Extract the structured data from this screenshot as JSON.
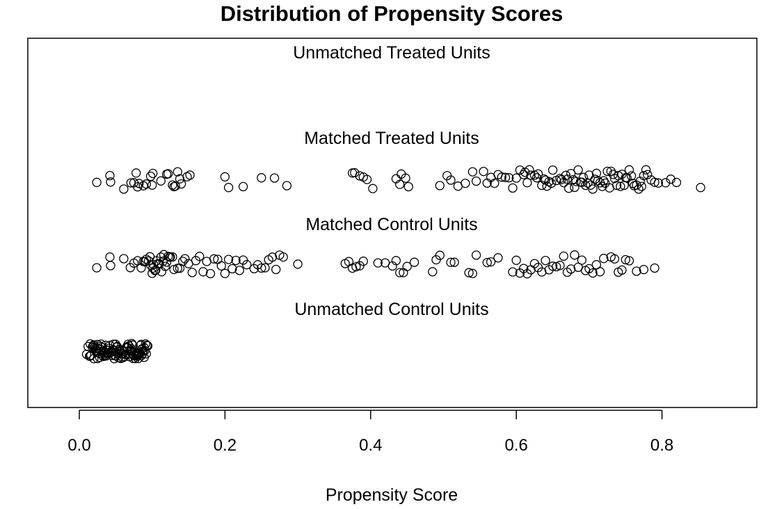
{
  "chart_data": {
    "type": "scatter",
    "title": "Distribution of Propensity Scores",
    "xlabel": "Propensity Score",
    "ylabel": "",
    "xlim": [
      -0.07,
      0.93
    ],
    "x_ticks": [
      {
        "value": 0.0,
        "label": "0.0"
      },
      {
        "value": 0.2,
        "label": "0.2"
      },
      {
        "value": 0.4,
        "label": "0.4"
      },
      {
        "value": 0.6,
        "label": "0.6"
      },
      {
        "value": 0.8,
        "label": "0.8"
      }
    ],
    "grid": false,
    "legend": "none",
    "groups": [
      {
        "name": "Unmatched Treated Units",
        "values": []
      },
      {
        "name": "Matched Treated Units",
        "values": [
          0.024,
          0.042,
          0.043,
          0.061,
          0.071,
          0.075,
          0.078,
          0.08,
          0.082,
          0.088,
          0.092,
          0.098,
          0.1,
          0.101,
          0.112,
          0.12,
          0.122,
          0.128,
          0.13,
          0.132,
          0.135,
          0.138,
          0.14,
          0.148,
          0.152,
          0.2,
          0.205,
          0.225,
          0.25,
          0.268,
          0.285,
          0.375,
          0.378,
          0.385,
          0.39,
          0.395,
          0.403,
          0.435,
          0.44,
          0.442,
          0.448,
          0.452,
          0.495,
          0.505,
          0.51,
          0.52,
          0.53,
          0.54,
          0.545,
          0.555,
          0.56,
          0.565,
          0.57,
          0.575,
          0.58,
          0.585,
          0.59,
          0.595,
          0.6,
          0.605,
          0.61,
          0.612,
          0.615,
          0.618,
          0.62,
          0.625,
          0.628,
          0.63,
          0.635,
          0.638,
          0.64,
          0.642,
          0.645,
          0.648,
          0.65,
          0.655,
          0.66,
          0.662,
          0.665,
          0.668,
          0.67,
          0.672,
          0.675,
          0.678,
          0.68,
          0.682,
          0.685,
          0.688,
          0.69,
          0.692,
          0.695,
          0.698,
          0.7,
          0.702,
          0.705,
          0.708,
          0.71,
          0.712,
          0.715,
          0.718,
          0.72,
          0.722,
          0.725,
          0.728,
          0.73,
          0.733,
          0.735,
          0.738,
          0.74,
          0.743,
          0.745,
          0.748,
          0.75,
          0.752,
          0.755,
          0.758,
          0.76,
          0.762,
          0.765,
          0.768,
          0.77,
          0.772,
          0.775,
          0.778,
          0.78,
          0.785,
          0.79,
          0.795,
          0.805,
          0.812,
          0.82,
          0.853
        ]
      },
      {
        "name": "Matched Control Units",
        "values": [
          0.024,
          0.042,
          0.043,
          0.061,
          0.07,
          0.075,
          0.08,
          0.085,
          0.088,
          0.09,
          0.092,
          0.095,
          0.097,
          0.098,
          0.1,
          0.101,
          0.102,
          0.104,
          0.105,
          0.106,
          0.108,
          0.11,
          0.112,
          0.113,
          0.115,
          0.116,
          0.118,
          0.12,
          0.122,
          0.124,
          0.125,
          0.128,
          0.13,
          0.135,
          0.138,
          0.142,
          0.145,
          0.15,
          0.155,
          0.16,
          0.165,
          0.17,
          0.175,
          0.18,
          0.185,
          0.19,
          0.195,
          0.2,
          0.205,
          0.21,
          0.215,
          0.22,
          0.225,
          0.23,
          0.24,
          0.245,
          0.25,
          0.255,
          0.26,
          0.265,
          0.27,
          0.275,
          0.28,
          0.3,
          0.365,
          0.37,
          0.375,
          0.38,
          0.385,
          0.39,
          0.41,
          0.42,
          0.43,
          0.435,
          0.44,
          0.445,
          0.45,
          0.46,
          0.485,
          0.49,
          0.495,
          0.51,
          0.515,
          0.535,
          0.54,
          0.545,
          0.56,
          0.565,
          0.575,
          0.595,
          0.6,
          0.605,
          0.61,
          0.615,
          0.62,
          0.625,
          0.63,
          0.635,
          0.64,
          0.645,
          0.65,
          0.655,
          0.66,
          0.665,
          0.67,
          0.675,
          0.68,
          0.685,
          0.69,
          0.695,
          0.7,
          0.705,
          0.71,
          0.715,
          0.72,
          0.73,
          0.735,
          0.74,
          0.745,
          0.75,
          0.755,
          0.765,
          0.775,
          0.79
        ]
      },
      {
        "name": "Unmatched Control Units",
        "values": [
          0.01,
          0.012,
          0.014,
          0.015,
          0.016,
          0.018,
          0.019,
          0.02,
          0.021,
          0.022,
          0.023,
          0.024,
          0.025,
          0.026,
          0.027,
          0.028,
          0.029,
          0.03,
          0.031,
          0.032,
          0.033,
          0.034,
          0.035,
          0.036,
          0.037,
          0.038,
          0.039,
          0.04,
          0.041,
          0.042,
          0.043,
          0.044,
          0.045,
          0.046,
          0.047,
          0.048,
          0.049,
          0.05,
          0.051,
          0.052,
          0.053,
          0.054,
          0.055,
          0.056,
          0.057,
          0.058,
          0.059,
          0.06,
          0.061,
          0.062,
          0.063,
          0.064,
          0.065,
          0.066,
          0.067,
          0.068,
          0.069,
          0.07,
          0.071,
          0.072,
          0.073,
          0.074,
          0.075,
          0.076,
          0.077,
          0.078,
          0.079,
          0.08,
          0.081,
          0.082,
          0.083,
          0.084,
          0.085,
          0.086,
          0.087,
          0.088,
          0.089,
          0.09,
          0.091,
          0.092,
          0.093,
          0.094,
          0.02,
          0.03,
          0.04,
          0.05,
          0.06,
          0.07,
          0.08,
          0.025,
          0.035,
          0.045,
          0.055,
          0.065,
          0.075,
          0.085,
          0.015,
          0.033,
          0.047,
          0.062,
          0.078,
          0.089
        ]
      }
    ]
  }
}
